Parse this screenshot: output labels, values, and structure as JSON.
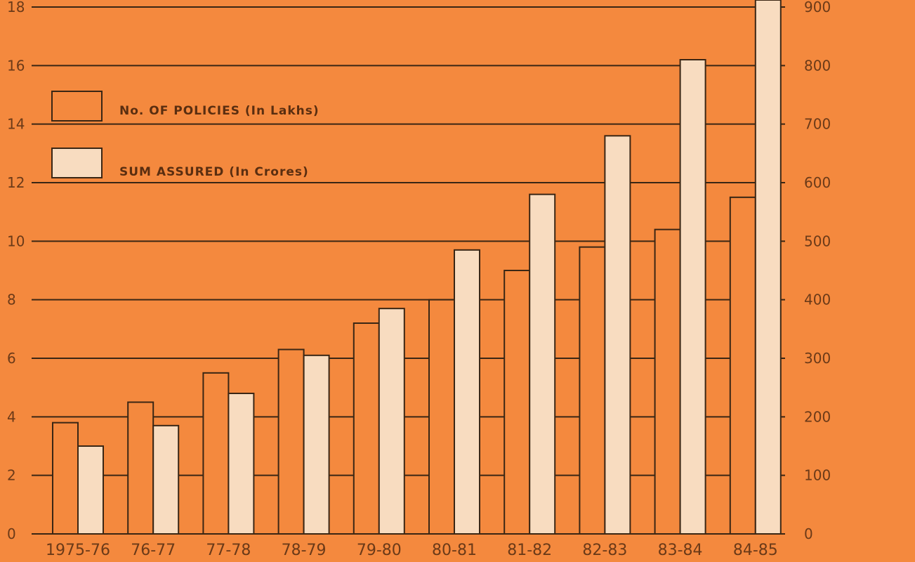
{
  "chart_data": {
    "type": "bar",
    "categories": [
      "1975-76",
      "76-77",
      "77-78",
      "78-79",
      "79-80",
      "80-81",
      "81-82",
      "82-83",
      "83-84",
      "84-85"
    ],
    "series": [
      {
        "name": "No. OF POLICIES (In Lakhs)",
        "axis": "left",
        "values": [
          3.8,
          4.5,
          5.5,
          6.3,
          7.2,
          8.0,
          9.0,
          9.8,
          10.4,
          11.5
        ],
        "color": "#f4893e"
      },
      {
        "name": "SUM ASSURED (In Crores)",
        "axis": "right",
        "values": [
          150,
          185,
          240,
          305,
          385,
          485,
          580,
          680,
          810,
          930
        ],
        "color": "#f8dcc0"
      }
    ],
    "left_axis": {
      "ticks": [
        0,
        2,
        4,
        6,
        8,
        10,
        12,
        14,
        16,
        18
      ],
      "range": [
        0,
        18
      ]
    },
    "right_axis": {
      "ticks": [
        0,
        100,
        200,
        300,
        400,
        500,
        600,
        700,
        800,
        900
      ],
      "range": [
        0,
        900
      ]
    },
    "grid": true,
    "legend_position": "top-left",
    "colors": {
      "background": "#f4893e",
      "line": "#3a2614",
      "light_bar": "#f8dcc0",
      "text": "#6b3a18"
    }
  }
}
